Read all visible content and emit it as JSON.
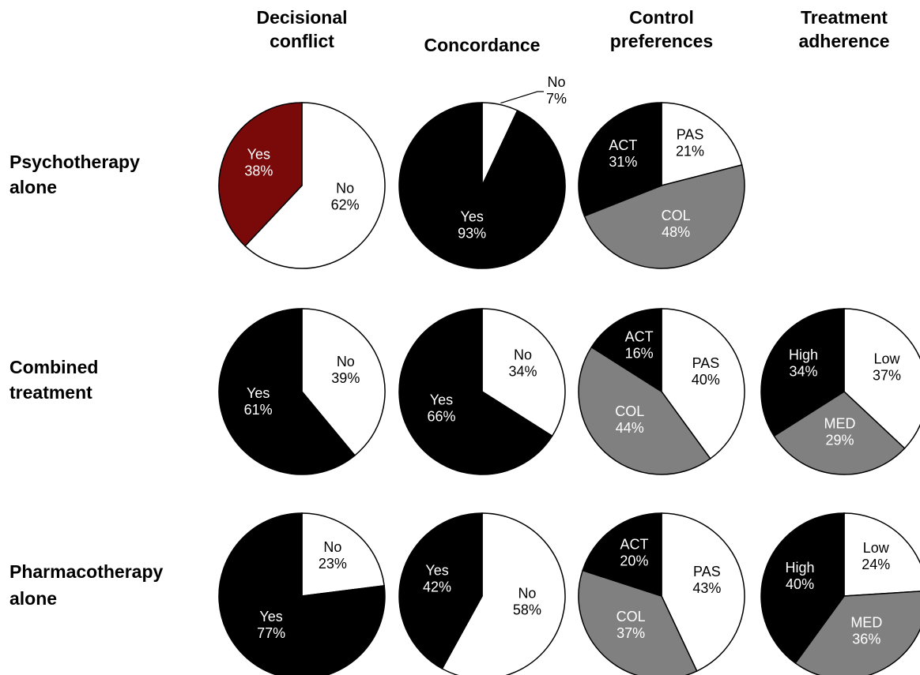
{
  "chart_data": {
    "type": "pie",
    "columns": [
      [
        "Decisional",
        "conflict"
      ],
      [
        "Concordance"
      ],
      [
        "Control",
        "preferences"
      ],
      [
        "Treatment",
        "adherence"
      ]
    ],
    "rows": [
      [
        "Psychotherapy",
        "alone"
      ],
      [
        "Combined",
        "treatment"
      ],
      [
        "Pharmacotherapy",
        "alone"
      ]
    ],
    "colors": {
      "highlight": "#7a0a0a",
      "black": "#000000",
      "white": "#ffffff",
      "gray": "#808080",
      "outline": "#000000"
    },
    "pies": [
      [
        {
          "slices": [
            {
              "label": "No",
              "value": 62,
              "color": "white",
              "text": "62%"
            },
            {
              "label": "Yes",
              "value": 38,
              "color": "highlight",
              "text": "38%"
            }
          ]
        },
        {
          "slices": [
            {
              "label": "No",
              "value": 7,
              "color": "white",
              "text": "7%",
              "outside": true
            },
            {
              "label": "Yes",
              "value": 93,
              "color": "black",
              "text": "93%"
            }
          ]
        },
        {
          "slices": [
            {
              "label": "PAS",
              "value": 21,
              "color": "white",
              "text": "21%"
            },
            {
              "label": "COL",
              "value": 48,
              "color": "gray",
              "text": "48%"
            },
            {
              "label": "ACT",
              "value": 31,
              "color": "black",
              "text": "31%"
            }
          ]
        },
        null
      ],
      [
        {
          "slices": [
            {
              "label": "No",
              "value": 39,
              "color": "white",
              "text": "39%"
            },
            {
              "label": "Yes",
              "value": 61,
              "color": "black",
              "text": "61%"
            }
          ]
        },
        {
          "slices": [
            {
              "label": "No",
              "value": 34,
              "color": "white",
              "text": "34%"
            },
            {
              "label": "Yes",
              "value": 66,
              "color": "black",
              "text": "66%"
            }
          ]
        },
        {
          "slices": [
            {
              "label": "PAS",
              "value": 40,
              "color": "white",
              "text": "40%"
            },
            {
              "label": "COL",
              "value": 44,
              "color": "gray",
              "text": "44%"
            },
            {
              "label": "ACT",
              "value": 16,
              "color": "black",
              "text": "16%"
            }
          ]
        },
        {
          "slices": [
            {
              "label": "Low",
              "value": 37,
              "color": "white",
              "text": "37%"
            },
            {
              "label": "MED",
              "value": 29,
              "color": "gray",
              "text": "29%"
            },
            {
              "label": "High",
              "value": 34,
              "color": "black",
              "text": "34%"
            }
          ]
        }
      ],
      [
        {
          "slices": [
            {
              "label": "No",
              "value": 23,
              "color": "white",
              "text": "23%"
            },
            {
              "label": "Yes",
              "value": 77,
              "color": "black",
              "text": "77%"
            }
          ]
        },
        {
          "slices": [
            {
              "label": "No",
              "value": 58,
              "color": "white",
              "text": "58%"
            },
            {
              "label": "Yes",
              "value": 42,
              "color": "black",
              "text": "42%"
            }
          ]
        },
        {
          "slices": [
            {
              "label": "PAS",
              "value": 43,
              "color": "white",
              "text": "43%"
            },
            {
              "label": "COL",
              "value": 37,
              "color": "gray",
              "text": "37%"
            },
            {
              "label": "ACT",
              "value": 20,
              "color": "black",
              "text": "20%"
            }
          ]
        },
        {
          "slices": [
            {
              "label": "Low",
              "value": 24,
              "color": "white",
              "text": "24%"
            },
            {
              "label": "MED",
              "value": 36,
              "color": "gray",
              "text": "36%"
            },
            {
              "label": "High",
              "value": 40,
              "color": "black",
              "text": "40%"
            }
          ]
        }
      ]
    ]
  }
}
